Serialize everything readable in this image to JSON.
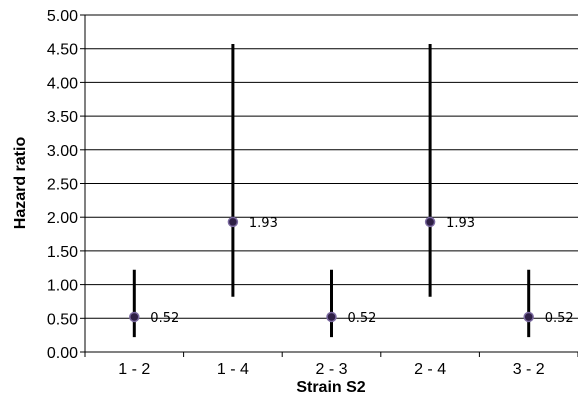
{
  "chart_data": {
    "type": "scatter",
    "title": "",
    "xlabel": "Strain S2",
    "ylabel": "Hazard ratio",
    "categories": [
      "1 - 2",
      "1 - 4",
      "2 - 3",
      "2 - 4",
      "3 - 2"
    ],
    "values": [
      0.52,
      1.93,
      0.52,
      1.93,
      0.52
    ],
    "data_labels": [
      "0.52",
      "1.93",
      "0.52",
      "1.93",
      "0.52"
    ],
    "error_low": [
      0.22,
      0.82,
      0.22,
      0.82,
      0.22
    ],
    "error_high": [
      1.22,
      4.57,
      1.22,
      4.57,
      1.22
    ],
    "ylim": [
      0,
      5
    ],
    "yticks": [
      "0.00",
      "0.50",
      "1.00",
      "1.50",
      "2.00",
      "2.50",
      "3.00",
      "3.50",
      "4.00",
      "4.50",
      "5.00"
    ],
    "grid": true,
    "colors": {
      "marker_fill": "#2e1f45",
      "marker_stroke": "#7b6aa0",
      "line": "#000000",
      "grid": "#000000"
    }
  }
}
